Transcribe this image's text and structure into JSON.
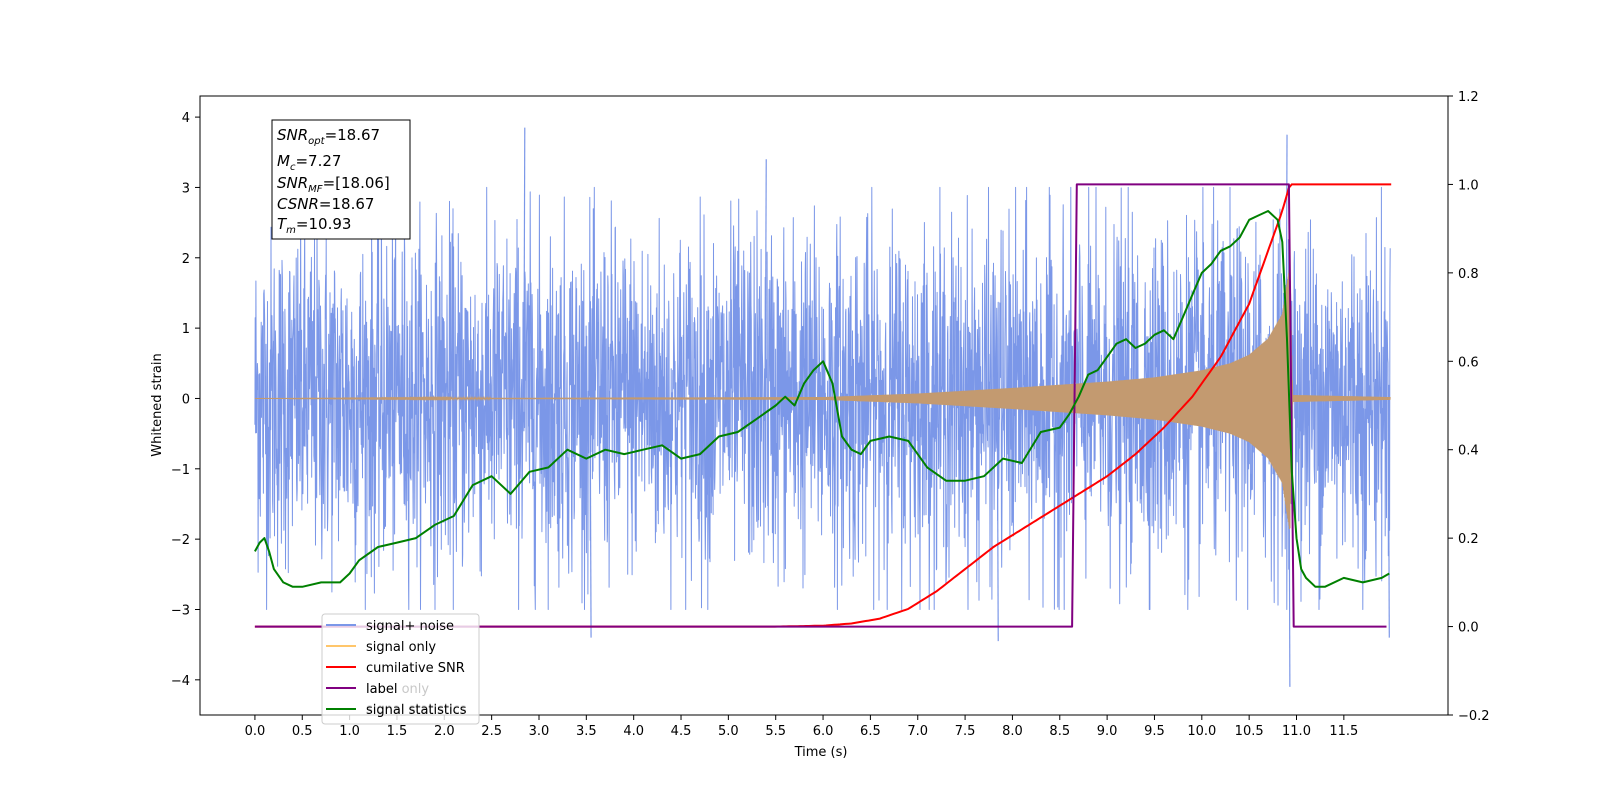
{
  "chart_data": {
    "type": "line",
    "xlabel": "Time (s)",
    "ylabel": "Whitened strain",
    "xlim": [
      -0.58,
      12.6
    ],
    "ylim": [
      -4.5,
      4.3
    ],
    "y2lim": [
      -0.2,
      1.2
    ],
    "xticks": [
      "0.0",
      "0.5",
      "1.0",
      "1.5",
      "2.0",
      "2.5",
      "3.0",
      "3.5",
      "4.0",
      "4.5",
      "5.0",
      "5.5",
      "6.0",
      "6.5",
      "7.0",
      "7.5",
      "8.0",
      "8.5",
      "9.0",
      "9.5",
      "10.0",
      "10.5",
      "11.0",
      "11.5"
    ],
    "yticks": [
      "4",
      "3",
      "2",
      "1",
      "0",
      "−1",
      "−2",
      "−3",
      "−4"
    ],
    "y2ticks": [
      "1.2",
      "1.0",
      "0.8",
      "0.6",
      "0.4",
      "0.2",
      "0.0",
      "−0.2"
    ],
    "info_box": {
      "snr_opt": {
        "sym": "SNR",
        "sub": "opt",
        "val": "=18.67"
      },
      "mc": {
        "sym": "M",
        "sub": "c",
        "val": "=7.27"
      },
      "snr_mf": {
        "sym": "SNR",
        "sub": "MF",
        "val": "=[18.06]"
      },
      "csnr": {
        "sym": "CSNR",
        "sub": "",
        "val": "=18.67"
      },
      "tm": {
        "sym": "T",
        "sub": "m",
        "val": "=10.93"
      }
    },
    "legend": {
      "placement": "lower-left",
      "entries": [
        "signal+ noise",
        "signal only",
        "cumilative SNR",
        "label",
        "signal statistics"
      ],
      "hidden_labels": [
        "label only",
        "signal statistics"
      ]
    },
    "colors": {
      "noise": "#7b97e8",
      "signal": "#c39a70",
      "signal_legend": "#ffc66b",
      "cumulative_snr": "#ff0000",
      "label": "#800080",
      "statistics": "#008000"
    },
    "series": [
      {
        "name": "signal+ noise",
        "axis": "left",
        "style": "noise",
        "x_range": [
          0.0,
          11.99
        ],
        "envelope": 1.2,
        "peaks": [
          [
            2.85,
            3.85
          ],
          [
            3.55,
            -3.4
          ],
          [
            5.4,
            3.4
          ],
          [
            7.85,
            -3.45
          ],
          [
            10.9,
            3.75
          ],
          [
            10.93,
            -4.1
          ],
          [
            11.98,
            -3.4
          ]
        ]
      },
      {
        "name": "signal only",
        "axis": "left",
        "style": "chirp",
        "x_range": [
          0.0,
          11.99
        ],
        "amplitude": [
          [
            0.0,
            0.0
          ],
          [
            6.0,
            0.02
          ],
          [
            7.0,
            0.07
          ],
          [
            8.0,
            0.15
          ],
          [
            9.0,
            0.24
          ],
          [
            9.5,
            0.3
          ],
          [
            10.0,
            0.4
          ],
          [
            10.3,
            0.5
          ],
          [
            10.5,
            0.62
          ],
          [
            10.7,
            0.85
          ],
          [
            10.85,
            1.2
          ],
          [
            10.93,
            1.9
          ],
          [
            10.96,
            0.05
          ],
          [
            11.99,
            0.02
          ]
        ]
      },
      {
        "name": "cumilative SNR",
        "axis": "right",
        "x": [
          0.0,
          5.0,
          5.5,
          6.0,
          6.3,
          6.6,
          6.9,
          7.2,
          7.5,
          7.8,
          8.1,
          8.4,
          8.7,
          9.0,
          9.3,
          9.6,
          9.9,
          10.2,
          10.5,
          10.7,
          10.85,
          10.93,
          12.0
        ],
        "y": [
          0.0,
          0.0,
          0.0,
          0.002,
          0.007,
          0.018,
          0.04,
          0.08,
          0.13,
          0.18,
          0.22,
          0.26,
          0.3,
          0.34,
          0.39,
          0.45,
          0.52,
          0.61,
          0.73,
          0.85,
          0.94,
          1.0,
          1.0
        ]
      },
      {
        "name": "label",
        "axis": "right",
        "x": [
          0.0,
          8.63,
          8.68,
          10.92,
          10.97,
          11.95
        ],
        "y": [
          0.0,
          0.0,
          1.0,
          1.0,
          0.0,
          0.0
        ]
      },
      {
        "name": "signal statistics",
        "axis": "right",
        "x": [
          0.0,
          0.05,
          0.1,
          0.15,
          0.2,
          0.3,
          0.4,
          0.5,
          0.7,
          0.9,
          1.0,
          1.1,
          1.3,
          1.5,
          1.7,
          1.9,
          2.1,
          2.3,
          2.5,
          2.7,
          2.9,
          3.1,
          3.3,
          3.5,
          3.7,
          3.9,
          4.1,
          4.3,
          4.5,
          4.7,
          4.9,
          5.1,
          5.3,
          5.5,
          5.6,
          5.7,
          5.8,
          5.9,
          6.0,
          6.1,
          6.2,
          6.3,
          6.4,
          6.5,
          6.7,
          6.9,
          7.1,
          7.3,
          7.5,
          7.7,
          7.9,
          8.1,
          8.3,
          8.5,
          8.6,
          8.7,
          8.8,
          8.9,
          9.0,
          9.1,
          9.2,
          9.3,
          9.4,
          9.5,
          9.6,
          9.7,
          9.8,
          9.9,
          10.0,
          10.1,
          10.2,
          10.3,
          10.4,
          10.5,
          10.6,
          10.7,
          10.8,
          10.85,
          10.9,
          10.95,
          11.0,
          11.05,
          11.1,
          11.2,
          11.3,
          11.5,
          11.7,
          11.9,
          11.98
        ],
        "y": [
          0.17,
          0.19,
          0.2,
          0.17,
          0.13,
          0.1,
          0.09,
          0.09,
          0.1,
          0.1,
          0.12,
          0.15,
          0.18,
          0.19,
          0.2,
          0.23,
          0.25,
          0.32,
          0.34,
          0.3,
          0.35,
          0.36,
          0.4,
          0.38,
          0.4,
          0.39,
          0.4,
          0.41,
          0.38,
          0.39,
          0.43,
          0.44,
          0.47,
          0.5,
          0.52,
          0.5,
          0.55,
          0.58,
          0.6,
          0.55,
          0.43,
          0.4,
          0.39,
          0.42,
          0.43,
          0.42,
          0.36,
          0.33,
          0.33,
          0.34,
          0.38,
          0.37,
          0.44,
          0.45,
          0.48,
          0.52,
          0.57,
          0.58,
          0.61,
          0.64,
          0.65,
          0.63,
          0.64,
          0.66,
          0.67,
          0.65,
          0.7,
          0.75,
          0.8,
          0.82,
          0.85,
          0.86,
          0.88,
          0.92,
          0.93,
          0.94,
          0.92,
          0.87,
          0.65,
          0.35,
          0.2,
          0.13,
          0.11,
          0.09,
          0.09,
          0.11,
          0.1,
          0.11,
          0.12
        ]
      }
    ]
  }
}
